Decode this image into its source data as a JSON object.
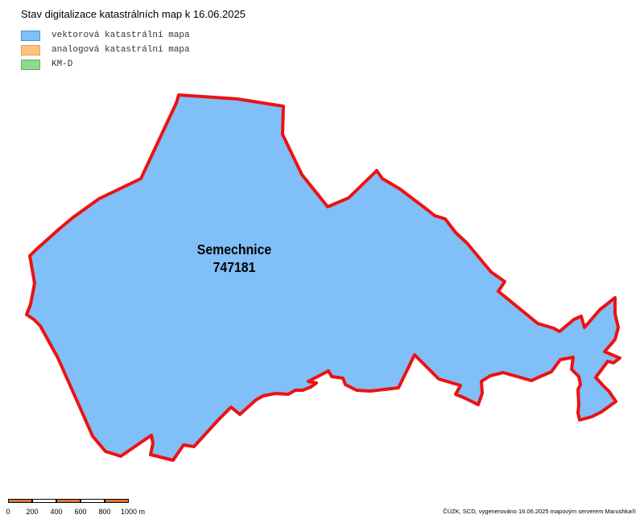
{
  "map": {
    "title": "Stav digitalizace katastrálních map k 16.06.2025",
    "legend": [
      {
        "label": "vektorová katastrální mapa",
        "fill": "#80bff8",
        "stroke": "#4a90d9"
      },
      {
        "label": "analogová katastrální mapa",
        "fill": "#ffc080",
        "stroke": "#e8a050"
      },
      {
        "label": "KM-D",
        "fill": "#90d890",
        "stroke": "#60b060"
      }
    ],
    "territory": {
      "name": "Semechnice",
      "code": "747181",
      "fill": "#80bff8",
      "boundary_color": "#ee1111"
    },
    "scale": {
      "labels": [
        "0",
        "200",
        "400",
        "600",
        "800",
        "1000 m"
      ],
      "colors": [
        "#e07830",
        "#ffffff"
      ]
    },
    "credit": "ČÚZK, SCD, vygenerováno 16.06.2025 mapovým serverem Marushka®"
  }
}
